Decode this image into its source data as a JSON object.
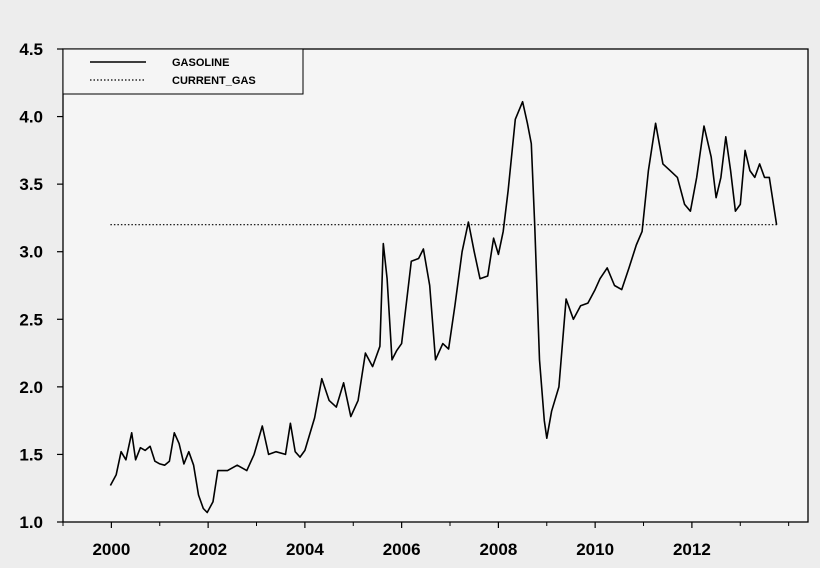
{
  "chart_data": {
    "type": "line",
    "title": "",
    "xlabel": "",
    "ylabel": "",
    "xlim": [
      1999.0,
      2014.4
    ],
    "ylim": [
      1.0,
      4.5
    ],
    "x_ticks": [
      2000,
      2002,
      2004,
      2006,
      2008,
      2010,
      2012
    ],
    "x_tick_labels": [
      "2000",
      "2002",
      "2004",
      "2006",
      "2008",
      "2010",
      "2012"
    ],
    "y_ticks": [
      1.0,
      1.5,
      2.0,
      2.5,
      3.0,
      3.5,
      4.0,
      4.5
    ],
    "y_tick_labels": [
      "1.0",
      "1.5",
      "2.0",
      "2.5",
      "3.0",
      "3.5",
      "4.0",
      "4.5"
    ],
    "grid": false,
    "legend": {
      "placement": "top-left",
      "entries": [
        {
          "label": "GASOLINE",
          "style": "solid"
        },
        {
          "label": "CURRENT_GAS",
          "style": "dotted"
        }
      ]
    },
    "series": [
      {
        "name": "GASOLINE",
        "style": "solid",
        "color": "#000000",
        "points": [
          [
            1999.98,
            1.27
          ],
          [
            2000.1,
            1.35
          ],
          [
            2000.2,
            1.52
          ],
          [
            2000.3,
            1.46
          ],
          [
            2000.42,
            1.66
          ],
          [
            2000.5,
            1.46
          ],
          [
            2000.6,
            1.55
          ],
          [
            2000.7,
            1.53
          ],
          [
            2000.8,
            1.56
          ],
          [
            2000.9,
            1.45
          ],
          [
            2001.0,
            1.43
          ],
          [
            2001.1,
            1.42
          ],
          [
            2001.2,
            1.45
          ],
          [
            2001.3,
            1.66
          ],
          [
            2001.4,
            1.58
          ],
          [
            2001.5,
            1.43
          ],
          [
            2001.6,
            1.52
          ],
          [
            2001.7,
            1.42
          ],
          [
            2001.8,
            1.2
          ],
          [
            2001.9,
            1.1
          ],
          [
            2001.98,
            1.07
          ],
          [
            2002.1,
            1.15
          ],
          [
            2002.2,
            1.38
          ],
          [
            2002.4,
            1.38
          ],
          [
            2002.6,
            1.42
          ],
          [
            2002.8,
            1.38
          ],
          [
            2002.95,
            1.5
          ],
          [
            2003.12,
            1.71
          ],
          [
            2003.25,
            1.5
          ],
          [
            2003.4,
            1.52
          ],
          [
            2003.6,
            1.5
          ],
          [
            2003.7,
            1.73
          ],
          [
            2003.8,
            1.52
          ],
          [
            2003.9,
            1.48
          ],
          [
            2004.0,
            1.53
          ],
          [
            2004.2,
            1.77
          ],
          [
            2004.35,
            2.06
          ],
          [
            2004.5,
            1.9
          ],
          [
            2004.65,
            1.85
          ],
          [
            2004.8,
            2.03
          ],
          [
            2004.95,
            1.78
          ],
          [
            2005.1,
            1.9
          ],
          [
            2005.25,
            2.25
          ],
          [
            2005.4,
            2.15
          ],
          [
            2005.55,
            2.3
          ],
          [
            2005.62,
            3.06
          ],
          [
            2005.7,
            2.8
          ],
          [
            2005.8,
            2.2
          ],
          [
            2005.9,
            2.27
          ],
          [
            2006.0,
            2.32
          ],
          [
            2006.2,
            2.93
          ],
          [
            2006.35,
            2.95
          ],
          [
            2006.45,
            3.02
          ],
          [
            2006.58,
            2.75
          ],
          [
            2006.7,
            2.2
          ],
          [
            2006.85,
            2.32
          ],
          [
            2006.97,
            2.28
          ],
          [
            2007.1,
            2.6
          ],
          [
            2007.25,
            3.0
          ],
          [
            2007.38,
            3.22
          ],
          [
            2007.5,
            3.0
          ],
          [
            2007.62,
            2.8
          ],
          [
            2007.78,
            2.82
          ],
          [
            2007.9,
            3.1
          ],
          [
            2008.0,
            2.98
          ],
          [
            2008.1,
            3.15
          ],
          [
            2008.2,
            3.45
          ],
          [
            2008.35,
            3.98
          ],
          [
            2008.5,
            4.11
          ],
          [
            2008.6,
            3.95
          ],
          [
            2008.68,
            3.8
          ],
          [
            2008.75,
            3.2
          ],
          [
            2008.85,
            2.2
          ],
          [
            2008.95,
            1.75
          ],
          [
            2009.0,
            1.62
          ],
          [
            2009.1,
            1.82
          ],
          [
            2009.25,
            2.0
          ],
          [
            2009.4,
            2.65
          ],
          [
            2009.55,
            2.5
          ],
          [
            2009.7,
            2.6
          ],
          [
            2009.85,
            2.62
          ],
          [
            2010.0,
            2.72
          ],
          [
            2010.1,
            2.8
          ],
          [
            2010.25,
            2.88
          ],
          [
            2010.4,
            2.75
          ],
          [
            2010.55,
            2.72
          ],
          [
            2010.7,
            2.88
          ],
          [
            2010.85,
            3.05
          ],
          [
            2010.97,
            3.15
          ],
          [
            2011.1,
            3.6
          ],
          [
            2011.25,
            3.95
          ],
          [
            2011.4,
            3.65
          ],
          [
            2011.55,
            3.6
          ],
          [
            2011.7,
            3.55
          ],
          [
            2011.85,
            3.35
          ],
          [
            2011.97,
            3.3
          ],
          [
            2012.1,
            3.55
          ],
          [
            2012.25,
            3.93
          ],
          [
            2012.4,
            3.7
          ],
          [
            2012.5,
            3.4
          ],
          [
            2012.6,
            3.55
          ],
          [
            2012.7,
            3.85
          ],
          [
            2012.8,
            3.6
          ],
          [
            2012.9,
            3.3
          ],
          [
            2013.0,
            3.35
          ],
          [
            2013.1,
            3.75
          ],
          [
            2013.2,
            3.6
          ],
          [
            2013.3,
            3.55
          ],
          [
            2013.4,
            3.65
          ],
          [
            2013.5,
            3.55
          ],
          [
            2013.6,
            3.55
          ],
          [
            2013.75,
            3.2
          ]
        ]
      },
      {
        "name": "CURRENT_GAS",
        "style": "dotted",
        "color": "#000000",
        "points": [
          [
            1999.98,
            3.2
          ],
          [
            2013.78,
            3.2
          ]
        ]
      }
    ]
  }
}
